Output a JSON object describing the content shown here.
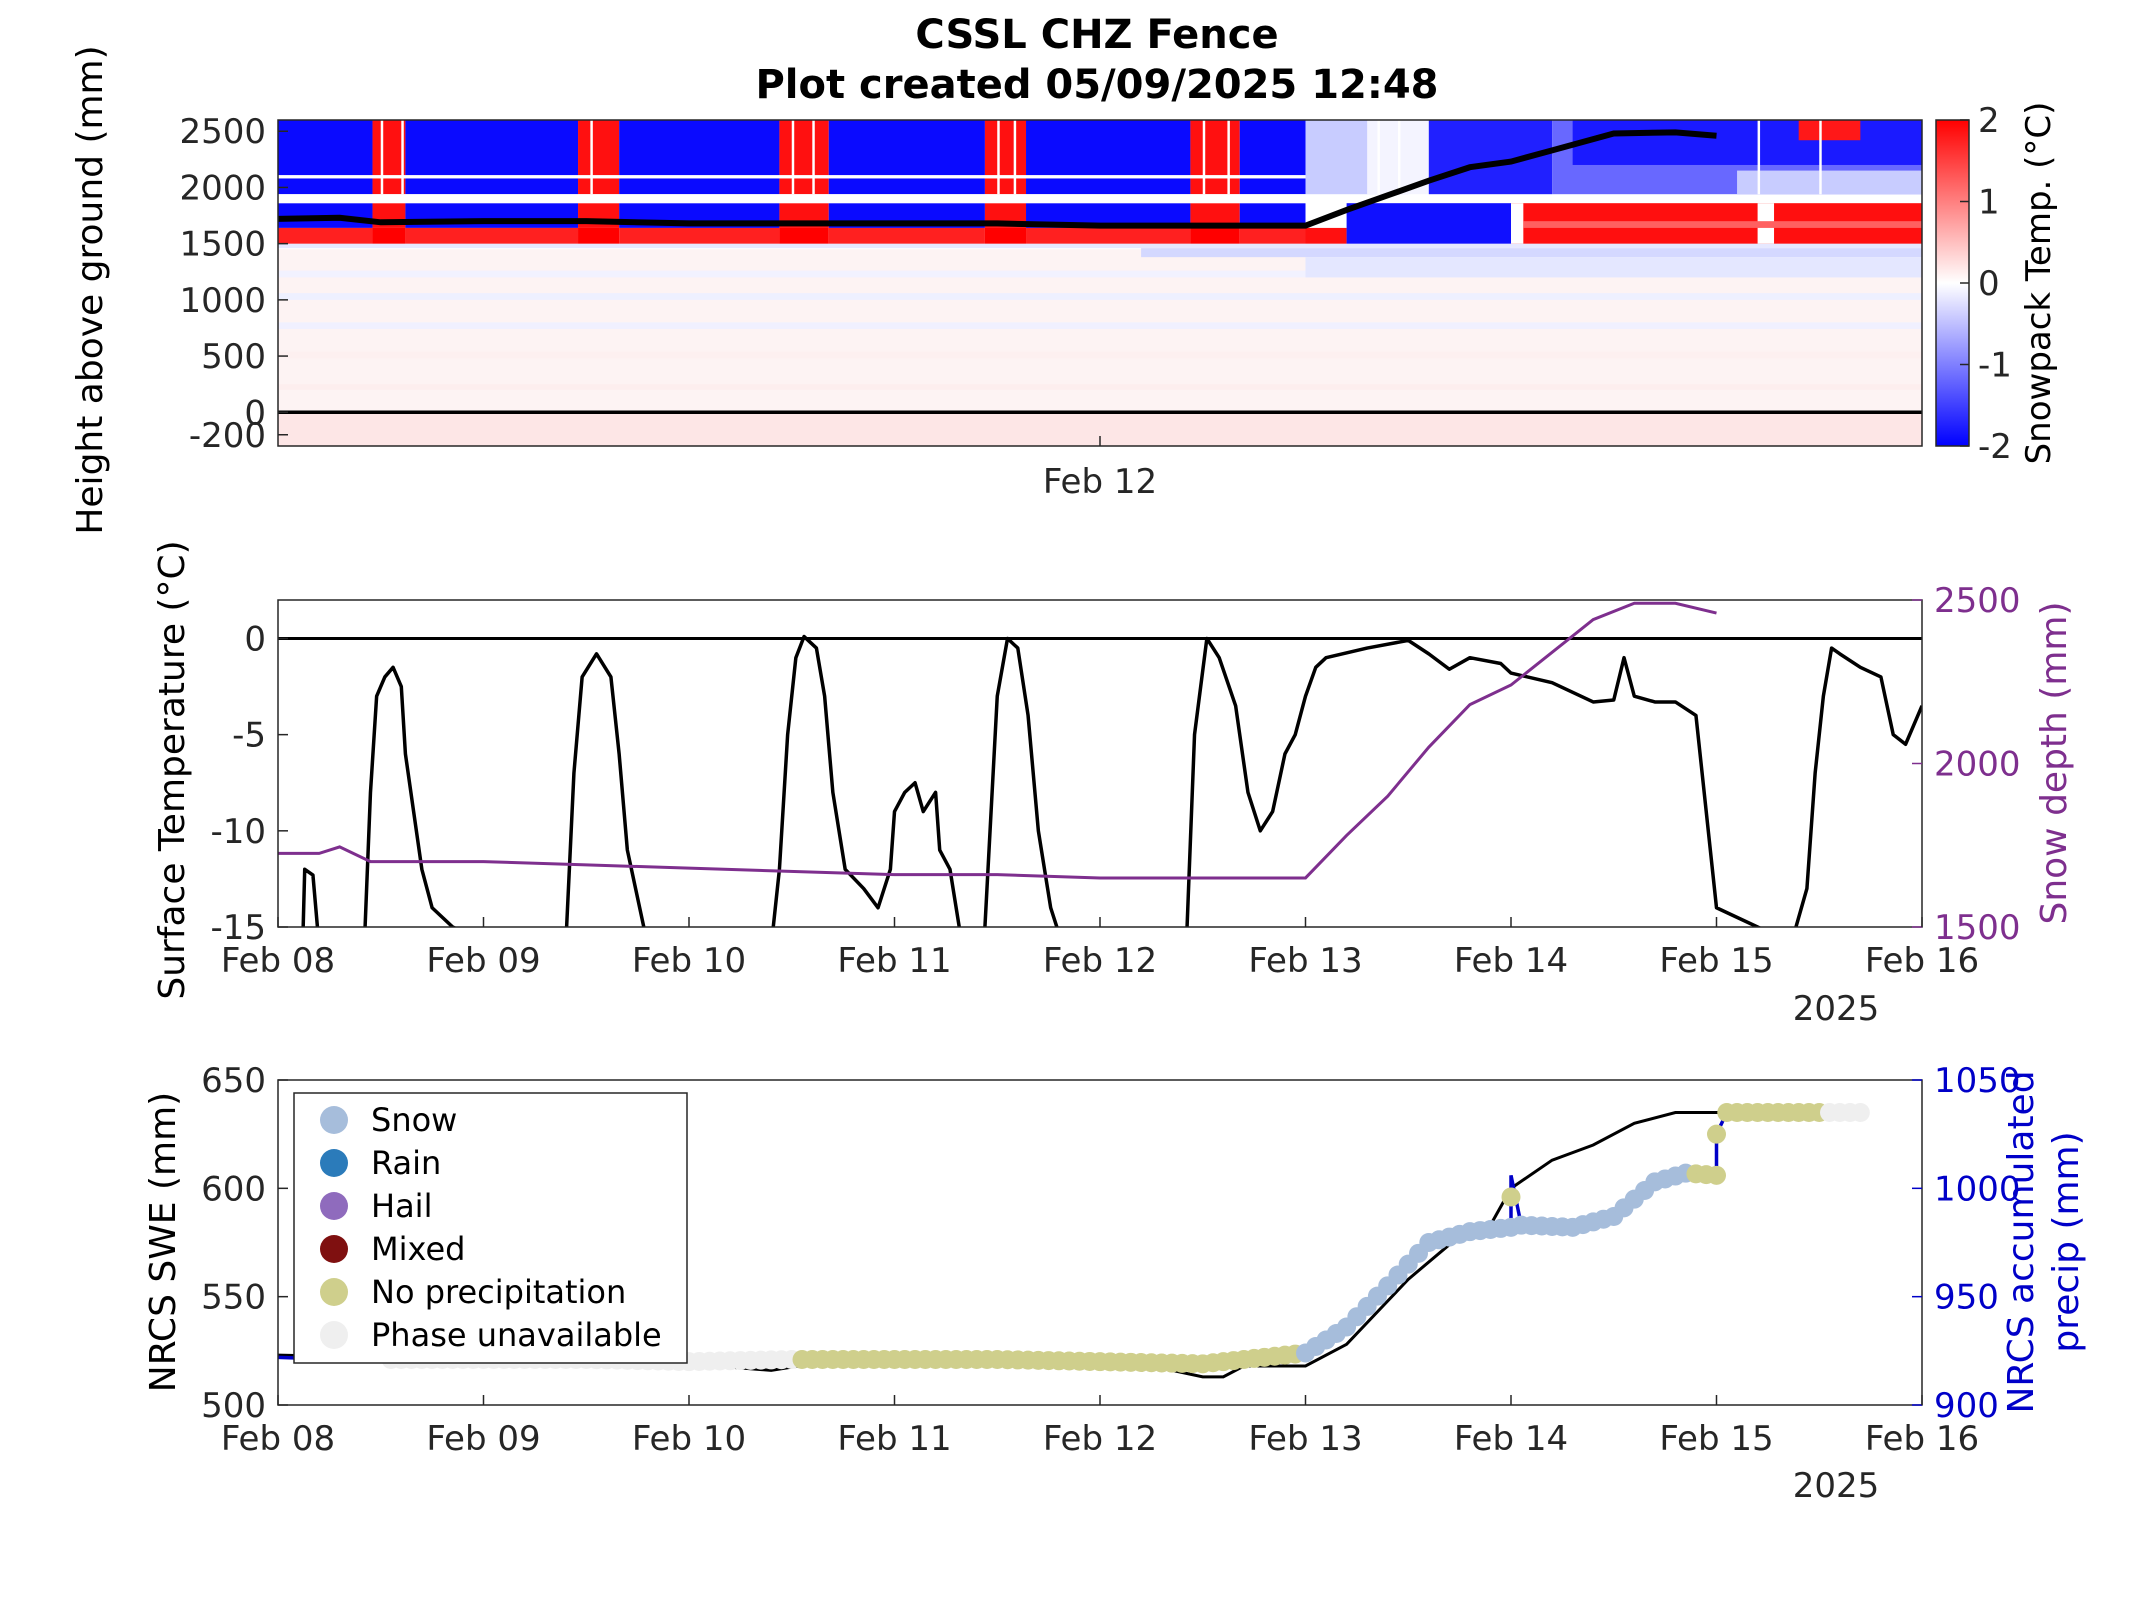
{
  "figure": {
    "title_line1": "CSSL CHZ Fence",
    "title_line2": "Plot created 05/09/2025 12:48"
  },
  "chart_data": [
    {
      "type": "heatmap",
      "ylabel": "Height above ground (mm)",
      "yticks": [
        -200,
        0,
        500,
        1000,
        1500,
        2000,
        2500
      ],
      "ylim": [
        -300,
        2600
      ],
      "xlim_days": [
        0,
        8
      ],
      "xtick_labels": [
        "Feb 12"
      ],
      "xtick_days": [
        4
      ],
      "colorbar": {
        "label": "Snowpack Temp. (°C)",
        "ticks": [
          2,
          1,
          0,
          -1,
          -2
        ],
        "colors": [
          "#0000ff",
          "#ffffff",
          "#ff0000"
        ]
      },
      "ground_line": 0,
      "snow_depth_overlay_color": "#000000"
    },
    {
      "type": "line",
      "ylabel": "Surface Temperature (°C)",
      "ylabel_right": "Snow depth (mm)",
      "ylim": [
        -15,
        2
      ],
      "ylim_right": [
        1500,
        2500
      ],
      "yticks": [
        0,
        -5,
        -10,
        -15
      ],
      "yticks_right": [
        2500,
        2000,
        1500
      ],
      "xtick_labels": [
        "Feb 08",
        "Feb 09",
        "Feb 10",
        "Feb 11",
        "Feb 12",
        "Feb 13",
        "Feb 14",
        "Feb 15",
        "Feb 16"
      ],
      "year_label": "2025",
      "series": [
        {
          "color": "#000000",
          "axis": "left"
        },
        {
          "color": "#7e2f8e",
          "axis": "right"
        }
      ],
      "zero_line": 0
    },
    {
      "type": "line",
      "ylabel": "NRCS SWE (mm)",
      "ylabel_right": "NRCS accumulated precip (mm)",
      "ylabel_right_line1": "NRCS accumulated",
      "ylabel_right_line2": "precip (mm)",
      "ylim": [
        500,
        650
      ],
      "ylim_right": [
        900,
        1050
      ],
      "yticks": [
        650,
        600,
        550,
        500
      ],
      "yticks_right": [
        1050,
        1000,
        950,
        900
      ],
      "xtick_labels": [
        "Feb 08",
        "Feb 09",
        "Feb 10",
        "Feb 11",
        "Feb 12",
        "Feb 13",
        "Feb 14",
        "Feb 15",
        "Feb 16"
      ],
      "year_label": "2025",
      "legend": [
        {
          "label": "Snow",
          "color": "#a6bddb"
        },
        {
          "label": "Rain",
          "color": "#2b7bba"
        },
        {
          "label": "Hail",
          "color": "#8f6bbd"
        },
        {
          "label": "Mixed",
          "color": "#7f1010"
        },
        {
          "label": "No precipitation",
          "color": "#cfcf8c"
        },
        {
          "label": "Phase unavailable",
          "color": "#efefef"
        }
      ],
      "legend_position": "top-left",
      "series": [
        {
          "color": "#000000",
          "axis": "left"
        },
        {
          "color": "#0000c8",
          "axis": "right"
        }
      ],
      "swe": [
        [
          0,
          523
        ],
        [
          0.5,
          522
        ],
        [
          1,
          521
        ],
        [
          1.5,
          520
        ],
        [
          2,
          519
        ],
        [
          2.4,
          516
        ],
        [
          2.6,
          519
        ],
        [
          3,
          518
        ],
        [
          3.5,
          518
        ],
        [
          4,
          519
        ],
        [
          4.3,
          517
        ],
        [
          4.5,
          513
        ],
        [
          4.6,
          513
        ],
        [
          4.7,
          518
        ],
        [
          5,
          518
        ],
        [
          5.2,
          528
        ],
        [
          5.4,
          548
        ],
        [
          5.5,
          558
        ],
        [
          5.7,
          574
        ],
        [
          5.9,
          583
        ],
        [
          6,
          600
        ],
        [
          6.2,
          613
        ],
        [
          6.4,
          620
        ],
        [
          6.6,
          630
        ],
        [
          6.8,
          635
        ],
        [
          7,
          635
        ],
        [
          7.1,
          635
        ],
        [
          7.3,
          635
        ]
      ],
      "precip": [
        [
          0,
          922
        ],
        [
          0.3,
          921
        ],
        [
          0.5,
          921
        ],
        [
          1,
          921
        ],
        [
          1.5,
          921
        ],
        [
          2,
          920
        ],
        [
          2.5,
          921
        ],
        [
          3,
          921
        ],
        [
          3.5,
          921
        ],
        [
          4,
          920
        ],
        [
          4.5,
          919
        ],
        [
          5,
          924
        ],
        [
          5.2,
          936
        ],
        [
          5.4,
          955
        ],
        [
          5.6,
          975
        ],
        [
          5.8,
          980
        ],
        [
          6,
          982
        ],
        [
          6,
          1006
        ],
        [
          6.05,
          983
        ],
        [
          6.3,
          982
        ],
        [
          6.5,
          987
        ],
        [
          6.7,
          1003
        ],
        [
          6.85,
          1007
        ],
        [
          7,
          1006
        ],
        [
          7,
          1025
        ],
        [
          7.05,
          1035
        ],
        [
          7.3,
          1035
        ]
      ]
    }
  ]
}
